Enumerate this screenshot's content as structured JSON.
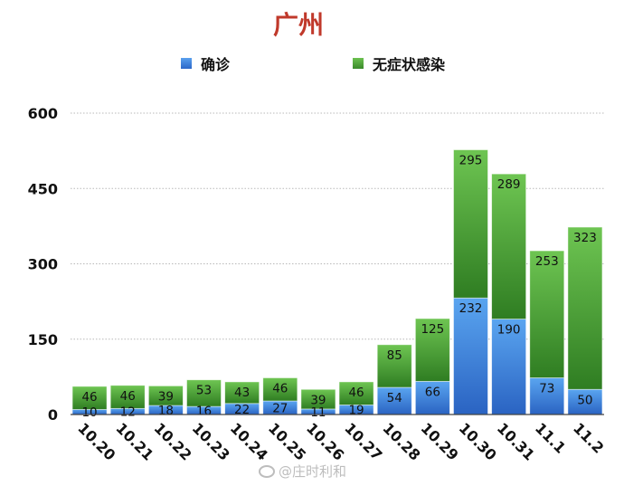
{
  "chart_data": {
    "type": "bar",
    "stacked": true,
    "title": "广州",
    "categories": [
      "10.20",
      "10.21",
      "10.22",
      "10.23",
      "10.24",
      "10.25",
      "10.26",
      "10.27",
      "10.28",
      "10.29",
      "10.30",
      "10.31",
      "11.1",
      "11.2"
    ],
    "series": [
      {
        "name": "确诊",
        "color": "#3a7fd5",
        "values": [
          10,
          12,
          18,
          16,
          22,
          27,
          11,
          19,
          54,
          66,
          232,
          190,
          73,
          50
        ]
      },
      {
        "name": "无症状感染",
        "color": "#4da43a",
        "values": [
          46,
          46,
          39,
          53,
          43,
          46,
          39,
          46,
          85,
          125,
          295,
          289,
          253,
          323
        ]
      }
    ],
    "yticks": [
      0,
      150,
      300,
      450,
      600
    ],
    "ylim": [
      0,
      600
    ],
    "grid": true,
    "legend_position": "top"
  },
  "watermark": "@庄时利和"
}
